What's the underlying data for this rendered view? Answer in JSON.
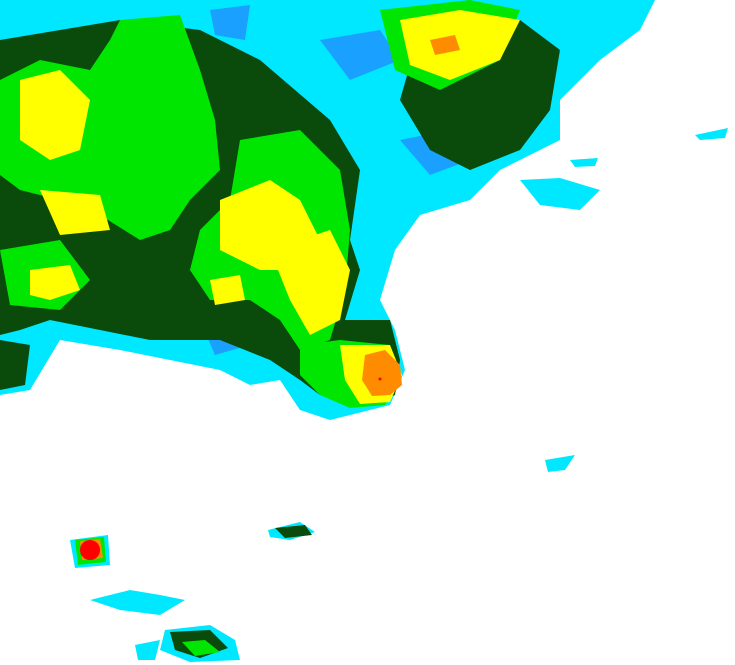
{
  "map": {
    "type": "weather-radar-precipitation",
    "background_color": "#ffffff",
    "intensity_colors": {
      "light": "#00e8ff",
      "light_moderate": "#1aa0ff",
      "moderate": "#0a4a0a",
      "moderate_heavy": "#00e600",
      "heavy": "#ffff00",
      "very_heavy": "#ff8c00",
      "extreme": "#ff0000"
    }
  }
}
